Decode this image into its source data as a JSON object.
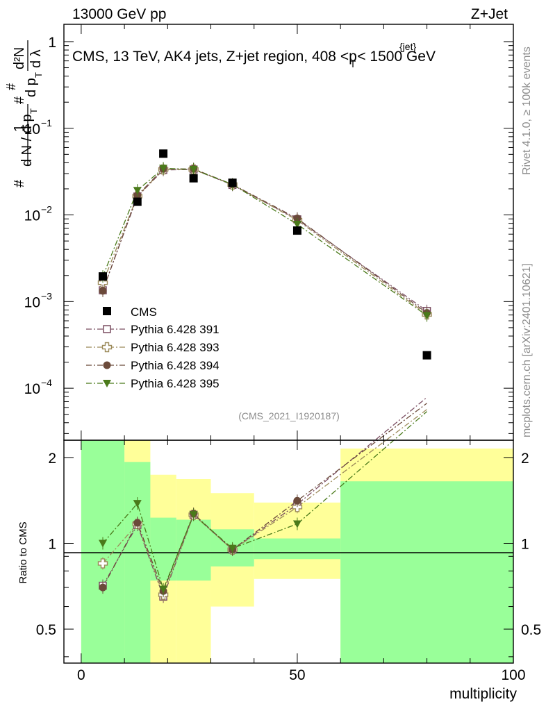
{
  "chart_data": {
    "type": "scatter",
    "header": {
      "left": "13000 GeV pp",
      "right": "Z+Jet"
    },
    "title": {
      "main": "CMS, 13 TeV, AK4 jets, Z+jet region, 408 <p",
      "sup": "{jet}",
      "sub": "T",
      "tail": "< 1500 GeV"
    },
    "ylabel": {
      "hash1": "#",
      "one": "1",
      "dN": "d N / d p",
      "T1": "T",
      "hash2": "#",
      "dpT": "d p",
      "T2": "T",
      "d2N": "d²N",
      "dlambda": "d λ",
      "hash3": "#"
    },
    "side_labels": {
      "rivet": "Rivet 4.1.0, ≥ 100k events",
      "mcplots": "mcplots.cern.ch [arXiv:2401.10621]"
    },
    "analysis_id": "(CMS_2021_I1920187)",
    "xlabel": "multiplicity",
    "ratio_ylabel": "Ratio to CMS",
    "xlim": [
      -4,
      100
    ],
    "ylim_log10": [
      -4.6,
      0.2
    ],
    "ratio_ylim": [
      0.38,
      2.3
    ],
    "xticks": [
      0,
      50,
      100
    ],
    "xtick_labels": [
      "0",
      "50",
      "100"
    ],
    "yticks": [
      {
        "mantissa": "1",
        "exp": ""
      },
      {
        "mantissa": "10",
        "exp": "−1"
      },
      {
        "mantissa": "10",
        "exp": "−2"
      },
      {
        "mantissa": "10",
        "exp": "−3"
      },
      {
        "mantissa": "10",
        "exp": "−4"
      }
    ],
    "ratio_yticks": [
      2,
      1,
      0.5
    ],
    "ratio_ytick_labels": [
      "2",
      "1",
      "0.5"
    ],
    "bins": [
      {
        "lo": 0,
        "hi": 10,
        "x": 5
      },
      {
        "lo": 10,
        "hi": 16,
        "x": 13
      },
      {
        "lo": 16,
        "hi": 22,
        "x": 19
      },
      {
        "lo": 22,
        "hi": 30,
        "x": 26
      },
      {
        "lo": 30,
        "hi": 40,
        "x": 35
      },
      {
        "lo": 40,
        "hi": 60,
        "x": 50
      },
      {
        "lo": 60,
        "hi": 100,
        "x": 80
      }
    ],
    "data": {
      "name": "CMS",
      "color": "#000000",
      "values": [
        0.00195,
        0.0142,
        0.051,
        0.0265,
        0.0235,
        0.0066,
        0.00024
      ]
    },
    "bands": {
      "green": {
        "color": "#99ff99",
        "lo": [
          0.3,
          0.3,
          0.74,
          0.74,
          0.83,
          0.88,
          0.36
        ],
        "hi": [
          2.5,
          1.93,
          1.23,
          1.21,
          1.12,
          1.04,
          1.65
        ]
      },
      "yellow": {
        "color": "#ffff99",
        "lo": [
          0.3,
          0.3,
          0.3,
          0.3,
          0.6,
          0.75,
          0.35
        ],
        "hi": [
          2.5,
          2.5,
          1.74,
          1.68,
          1.5,
          1.39,
          2.15
        ]
      }
    },
    "series": [
      {
        "name": "Pythia 6.428 391",
        "marker": "open-square",
        "color": "#7a4d61",
        "values": [
          0.00135,
          0.0163,
          0.033,
          0.0335,
          0.0222,
          0.0089,
          0.00078
        ],
        "ratio": [
          0.71,
          1.16,
          0.65,
          1.26,
          0.95,
          1.37,
          3.25
        ]
      },
      {
        "name": "Pythia 6.428 393",
        "marker": "open-cross",
        "color": "#9c8a5a",
        "values": [
          0.00165,
          0.0165,
          0.0335,
          0.0335,
          0.0224,
          0.0087,
          0.00071
        ],
        "ratio": [
          0.85,
          1.17,
          0.66,
          1.26,
          0.95,
          1.34,
          2.95
        ]
      },
      {
        "name": "Pythia 6.428 394",
        "marker": "filled-circle",
        "color": "#6b4a3a",
        "values": [
          0.00133,
          0.0168,
          0.034,
          0.034,
          0.0225,
          0.0091,
          0.00074
        ],
        "ratio": [
          0.7,
          1.18,
          0.68,
          1.27,
          0.95,
          1.41,
          3.1
        ]
      },
      {
        "name": "Pythia 6.428 395",
        "marker": "filled-triangle-down",
        "color": "#4a7a1a",
        "values": [
          0.00195,
          0.0192,
          0.0345,
          0.0335,
          0.0225,
          0.0078,
          0.00069
        ],
        "ratio": [
          1.0,
          1.38,
          0.69,
          1.26,
          0.96,
          1.17,
          2.9
        ]
      }
    ]
  }
}
